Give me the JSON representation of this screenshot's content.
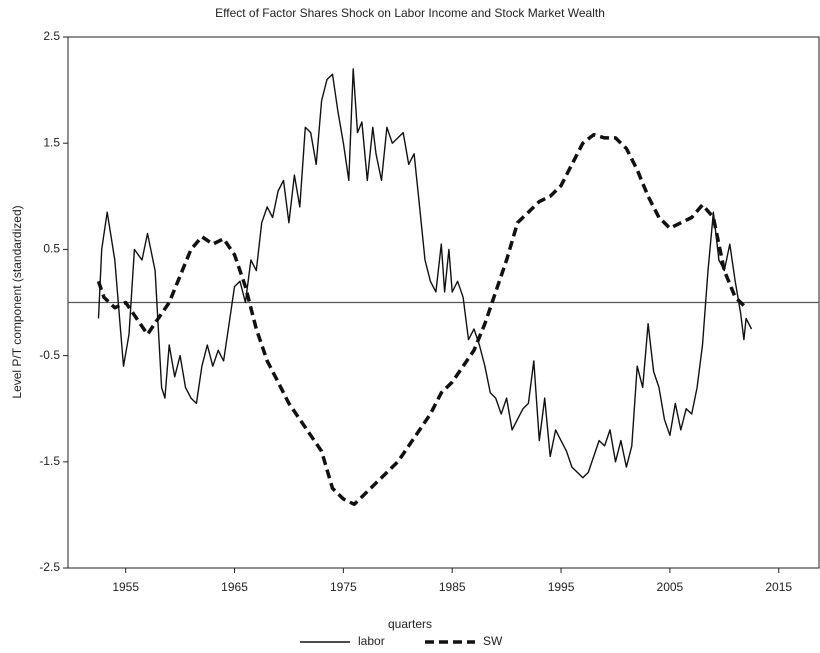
{
  "chart_data": {
    "type": "line",
    "title": "Effect of Factor Shares Shock on Labor Income and Stock Market Wealth",
    "x_label": "quarters",
    "y_label": "Level P/T component (standardized)",
    "xlim": [
      1949.7,
      2018.7
    ],
    "ylim": [
      -2.5,
      2.5
    ],
    "xticks": [
      1955,
      1965,
      1975,
      1985,
      1995,
      2005,
      2015
    ],
    "yticks": [
      -2.5,
      -1.5,
      -0.5,
      0.5,
      1.5,
      2.5
    ],
    "hline": 0,
    "legend": "bottom",
    "series": [
      {
        "name": "labor",
        "color": "#111111",
        "dash": "solid",
        "x": [
          1952.5,
          1952.8,
          1953.3,
          1954,
          1954.8,
          1955.3,
          1955.8,
          1956.5,
          1957,
          1957.7,
          1958.3,
          1958.6,
          1959,
          1959.5,
          1960,
          1960.5,
          1961,
          1961.5,
          1962,
          1962.5,
          1963,
          1963.5,
          1964,
          1964.5,
          1965,
          1965.5,
          1966,
          1966.5,
          1967,
          1967.5,
          1968,
          1968.5,
          1969,
          1969.5,
          1970,
          1970.5,
          1971,
          1971.5,
          1972,
          1972.5,
          1973,
          1973.5,
          1974,
          1974.5,
          1975,
          1975.5,
          1975.9,
          1976.3,
          1976.7,
          1977.2,
          1977.7,
          1978,
          1978.5,
          1979,
          1979.5,
          1980,
          1980.5,
          1981,
          1981.5,
          1982,
          1982.5,
          1983,
          1983.5,
          1984,
          1984.3,
          1984.7,
          1985,
          1985.5,
          1986,
          1986.5,
          1987,
          1987.5,
          1988,
          1988.5,
          1989,
          1989.5,
          1990,
          1990.5,
          1991,
          1991.5,
          1992,
          1992.5,
          1993,
          1993.5,
          1994,
          1994.5,
          1995,
          1995.5,
          1996,
          1996.5,
          1997,
          1997.5,
          1998,
          1998.5,
          1999,
          1999.5,
          2000,
          2000.5,
          2001,
          2001.5,
          2002,
          2002.5,
          2003,
          2003.5,
          2004,
          2004.5,
          2005,
          2005.5,
          2006,
          2006.5,
          2007,
          2007.5,
          2008,
          2008.5,
          2009,
          2009.5,
          2010,
          2010.5,
          2011,
          2011.5,
          2011.8,
          2012,
          2012.5
        ],
        "values": [
          -0.15,
          0.5,
          0.85,
          0.4,
          -0.6,
          -0.3,
          0.5,
          0.4,
          0.65,
          0.3,
          -0.8,
          -0.9,
          -0.4,
          -0.7,
          -0.5,
          -0.8,
          -0.9,
          -0.95,
          -0.6,
          -0.4,
          -0.6,
          -0.45,
          -0.55,
          -0.2,
          0.15,
          0.2,
          0.0,
          0.4,
          0.3,
          0.75,
          0.9,
          0.8,
          1.05,
          1.15,
          0.75,
          1.2,
          0.9,
          1.65,
          1.6,
          1.3,
          1.9,
          2.1,
          2.15,
          1.8,
          1.5,
          1.15,
          2.2,
          1.6,
          1.7,
          1.15,
          1.65,
          1.4,
          1.15,
          1.65,
          1.5,
          1.55,
          1.6,
          1.3,
          1.4,
          0.9,
          0.4,
          0.2,
          0.1,
          0.55,
          0.1,
          0.5,
          0.1,
          0.2,
          0.05,
          -0.35,
          -0.25,
          -0.4,
          -0.6,
          -0.85,
          -0.9,
          -1.05,
          -0.9,
          -1.2,
          -1.1,
          -1.0,
          -0.95,
          -0.55,
          -1.3,
          -0.9,
          -1.45,
          -1.2,
          -1.3,
          -1.4,
          -1.55,
          -1.6,
          -1.65,
          -1.6,
          -1.45,
          -1.3,
          -1.35,
          -1.2,
          -1.5,
          -1.3,
          -1.55,
          -1.35,
          -0.6,
          -0.8,
          -0.2,
          -0.65,
          -0.8,
          -1.1,
          -1.25,
          -0.95,
          -1.2,
          -1.0,
          -1.05,
          -0.8,
          -0.4,
          0.3,
          0.85,
          0.4,
          0.3,
          0.55,
          0.2,
          -0.1,
          -0.35,
          -0.15,
          -0.25
        ]
      },
      {
        "name": "SW",
        "color": "#111111",
        "dash": "dashed",
        "x": [
          1952.5,
          1953,
          1954,
          1955,
          1956,
          1957,
          1958,
          1959,
          1960,
          1961,
          1962,
          1963,
          1964,
          1965,
          1966,
          1967,
          1968,
          1969,
          1970,
          1971,
          1972,
          1973,
          1974,
          1975,
          1976,
          1977,
          1978,
          1979,
          1980,
          1981,
          1982,
          1983,
          1984,
          1985,
          1986,
          1987,
          1988,
          1989,
          1990,
          1991,
          1992,
          1993,
          1994,
          1995,
          1996,
          1997,
          1998,
          1999,
          2000,
          2001,
          2002,
          2003,
          2004,
          2005,
          2006,
          2007,
          2008,
          2009,
          2010,
          2011,
          2012
        ],
        "values": [
          0.2,
          0.05,
          -0.05,
          0.0,
          -0.15,
          -0.3,
          -0.15,
          0.0,
          0.25,
          0.5,
          0.62,
          0.55,
          0.6,
          0.45,
          0.15,
          -0.25,
          -0.55,
          -0.75,
          -0.95,
          -1.1,
          -1.25,
          -1.4,
          -1.75,
          -1.85,
          -1.9,
          -1.8,
          -1.7,
          -1.6,
          -1.5,
          -1.35,
          -1.2,
          -1.05,
          -0.85,
          -0.75,
          -0.6,
          -0.45,
          -0.2,
          0.1,
          0.4,
          0.75,
          0.85,
          0.95,
          1.0,
          1.1,
          1.3,
          1.5,
          1.58,
          1.55,
          1.55,
          1.45,
          1.25,
          1.0,
          0.8,
          0.7,
          0.75,
          0.8,
          0.92,
          0.8,
          0.3,
          0.05,
          -0.05
        ]
      }
    ]
  }
}
